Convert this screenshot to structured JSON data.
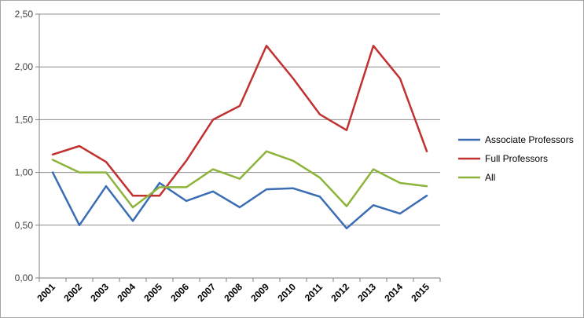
{
  "chart_data": {
    "type": "line",
    "title": "",
    "xlabel": "",
    "ylabel": "",
    "categories": [
      "2001",
      "2002",
      "2003",
      "2004",
      "2005",
      "2006",
      "2007",
      "2008",
      "2009",
      "2010",
      "2011",
      "2012",
      "2013",
      "2014",
      "2015"
    ],
    "ylim": [
      0,
      2.5
    ],
    "yticks": [
      "0,00",
      "0,50",
      "1,00",
      "1,50",
      "2,00",
      "2,50"
    ],
    "ytick_values": [
      0,
      0.5,
      1.0,
      1.5,
      2.0,
      2.5
    ],
    "grid": true,
    "legend_position": "right",
    "series": [
      {
        "name": "Associate Professors",
        "color": "#3b6db5",
        "values": [
          1.0,
          0.5,
          0.87,
          0.54,
          0.9,
          0.73,
          0.82,
          0.67,
          0.84,
          0.85,
          0.77,
          0.47,
          0.69,
          0.61,
          0.78
        ]
      },
      {
        "name": "Full Professors",
        "color": "#c0312f",
        "values": [
          1.17,
          1.25,
          1.1,
          0.78,
          0.78,
          1.11,
          1.5,
          1.63,
          2.2,
          1.89,
          1.55,
          1.4,
          2.2,
          1.89,
          1.2
        ]
      },
      {
        "name": "All",
        "color": "#8db43a",
        "values": [
          1.12,
          1.0,
          1.0,
          0.67,
          0.86,
          0.86,
          1.03,
          0.94,
          1.2,
          1.11,
          0.95,
          0.68,
          1.03,
          0.9,
          0.87
        ]
      }
    ]
  }
}
